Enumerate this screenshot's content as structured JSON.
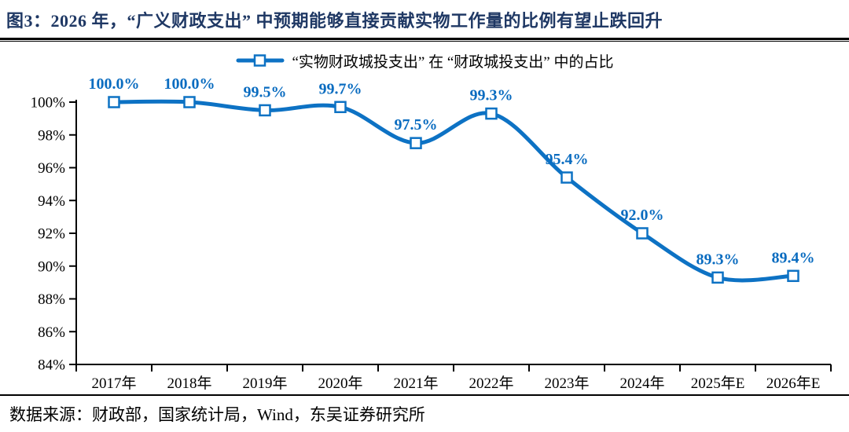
{
  "header": {
    "title": "图3：2026 年，“广义财政支出” 中预期能够直接贡献实物工作量的比例有望止跌回升"
  },
  "footer": {
    "source": "数据来源：财政部，国家统计局，Wind，东吴证券研究所"
  },
  "chart_data": {
    "type": "line",
    "smooth": true,
    "legend": "“实物财政城投支出” 在 “财政城投支出” 中的占比",
    "legend_position": "top",
    "categories": [
      "2017年",
      "2018年",
      "2019年",
      "2020年",
      "2021年",
      "2022年",
      "2023年",
      "2024年",
      "2025年E",
      "2026年E"
    ],
    "series": [
      {
        "name": "“实物财政城投支出” 在 “财政城投支出” 中的占比",
        "values": [
          100.0,
          100.0,
          99.5,
          99.7,
          97.5,
          99.3,
          95.4,
          92.0,
          89.3,
          89.4
        ]
      }
    ],
    "data_labels": [
      "100.0%",
      "100.0%",
      "99.5%",
      "99.7%",
      "97.5%",
      "99.3%",
      "95.4%",
      "92.0%",
      "89.3%",
      "89.4%"
    ],
    "ylabel": "",
    "xlabel": "",
    "ylim": [
      84,
      100
    ],
    "y_tick_step": 2,
    "y_ticks": [
      "100%",
      "98%",
      "96%",
      "94%",
      "92%",
      "90%",
      "88%",
      "86%",
      "84%"
    ],
    "grid": false,
    "marker": "square",
    "line_color": "#0d72c4",
    "label_color": "#0a6cc0",
    "axis_color": "#000000",
    "title_color": "#1f3864"
  }
}
